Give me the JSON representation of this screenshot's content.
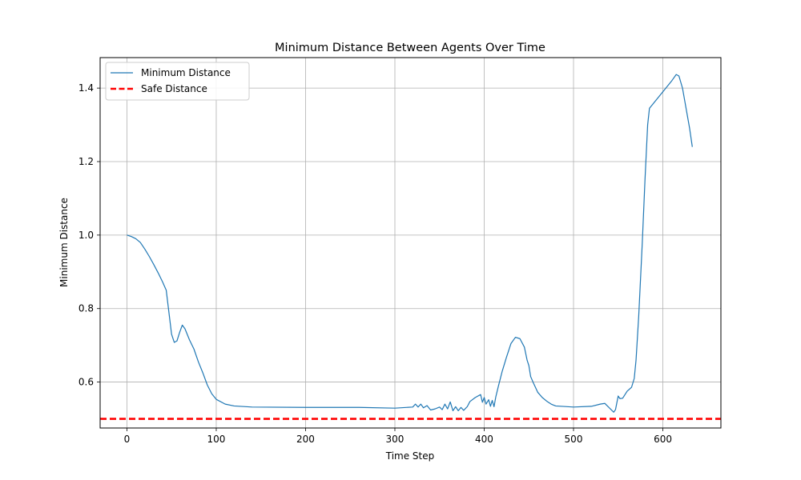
{
  "chart_data": {
    "type": "line",
    "title": "Minimum Distance Between Agents Over Time",
    "xlabel": "Time Step",
    "ylabel": "Minimum Distance",
    "xlim": [
      -30,
      665
    ],
    "ylim": [
      0.475,
      1.483
    ],
    "x_ticks": [
      0,
      100,
      200,
      300,
      400,
      500,
      600
    ],
    "y_ticks": [
      0.6,
      0.8,
      1.0,
      1.2,
      1.4
    ],
    "x_tick_labels": [
      "0",
      "100",
      "200",
      "300",
      "400",
      "500",
      "600"
    ],
    "y_tick_labels": [
      "0.6",
      "0.8",
      "1.0",
      "1.2",
      "1.4"
    ],
    "grid": true,
    "legend_position": "top-left",
    "series": [
      {
        "name": "Minimum Distance",
        "color": "#1f77b4",
        "style": "solid",
        "points": [
          [
            0,
            1.0
          ],
          [
            5,
            0.996
          ],
          [
            10,
            0.99
          ],
          [
            15,
            0.98
          ],
          [
            20,
            0.962
          ],
          [
            25,
            0.942
          ],
          [
            30,
            0.92
          ],
          [
            35,
            0.897
          ],
          [
            40,
            0.872
          ],
          [
            44,
            0.85
          ],
          [
            46,
            0.81
          ],
          [
            48,
            0.77
          ],
          [
            50,
            0.73
          ],
          [
            53,
            0.708
          ],
          [
            56,
            0.712
          ],
          [
            59,
            0.735
          ],
          [
            62,
            0.755
          ],
          [
            65,
            0.745
          ],
          [
            70,
            0.715
          ],
          [
            75,
            0.69
          ],
          [
            80,
            0.655
          ],
          [
            85,
            0.625
          ],
          [
            90,
            0.592
          ],
          [
            95,
            0.568
          ],
          [
            100,
            0.553
          ],
          [
            110,
            0.54
          ],
          [
            120,
            0.535
          ],
          [
            140,
            0.532
          ],
          [
            200,
            0.531
          ],
          [
            260,
            0.531
          ],
          [
            300,
            0.529
          ],
          [
            320,
            0.532
          ],
          [
            323,
            0.54
          ],
          [
            326,
            0.532
          ],
          [
            329,
            0.54
          ],
          [
            332,
            0.53
          ],
          [
            336,
            0.536
          ],
          [
            340,
            0.524
          ],
          [
            345,
            0.527
          ],
          [
            350,
            0.532
          ],
          [
            353,
            0.525
          ],
          [
            356,
            0.54
          ],
          [
            359,
            0.527
          ],
          [
            362,
            0.546
          ],
          [
            365,
            0.522
          ],
          [
            368,
            0.533
          ],
          [
            371,
            0.522
          ],
          [
            374,
            0.531
          ],
          [
            377,
            0.523
          ],
          [
            381,
            0.533
          ],
          [
            384,
            0.547
          ],
          [
            390,
            0.558
          ],
          [
            396,
            0.566
          ],
          [
            398,
            0.545
          ],
          [
            400,
            0.558
          ],
          [
            402,
            0.54
          ],
          [
            405,
            0.552
          ],
          [
            407,
            0.534
          ],
          [
            409,
            0.55
          ],
          [
            411,
            0.533
          ],
          [
            413,
            0.56
          ],
          [
            416,
            0.59
          ],
          [
            420,
            0.628
          ],
          [
            425,
            0.668
          ],
          [
            430,
            0.705
          ],
          [
            435,
            0.722
          ],
          [
            440,
            0.718
          ],
          [
            445,
            0.695
          ],
          [
            448,
            0.66
          ],
          [
            450,
            0.645
          ],
          [
            452,
            0.615
          ],
          [
            455,
            0.598
          ],
          [
            460,
            0.572
          ],
          [
            465,
            0.558
          ],
          [
            470,
            0.548
          ],
          [
            475,
            0.54
          ],
          [
            480,
            0.535
          ],
          [
            500,
            0.532
          ],
          [
            520,
            0.534
          ],
          [
            530,
            0.54
          ],
          [
            535,
            0.542
          ],
          [
            540,
            0.53
          ],
          [
            545,
            0.518
          ],
          [
            547,
            0.525
          ],
          [
            550,
            0.562
          ],
          [
            552,
            0.555
          ],
          [
            555,
            0.556
          ],
          [
            560,
            0.575
          ],
          [
            565,
            0.586
          ],
          [
            568,
            0.61
          ],
          [
            570,
            0.66
          ],
          [
            573,
            0.78
          ],
          [
            577,
            0.98
          ],
          [
            580,
            1.15
          ],
          [
            583,
            1.3
          ],
          [
            585,
            1.345
          ],
          [
            590,
            1.36
          ],
          [
            600,
            1.39
          ],
          [
            610,
            1.42
          ],
          [
            615,
            1.437
          ],
          [
            618,
            1.433
          ],
          [
            622,
            1.4
          ],
          [
            626,
            1.345
          ],
          [
            630,
            1.29
          ],
          [
            633,
            1.24
          ]
        ]
      },
      {
        "name": "Safe Distance",
        "color": "#ff0000",
        "style": "dashed",
        "points": [
          [
            -30,
            0.5
          ],
          [
            665,
            0.5
          ]
        ]
      }
    ]
  }
}
